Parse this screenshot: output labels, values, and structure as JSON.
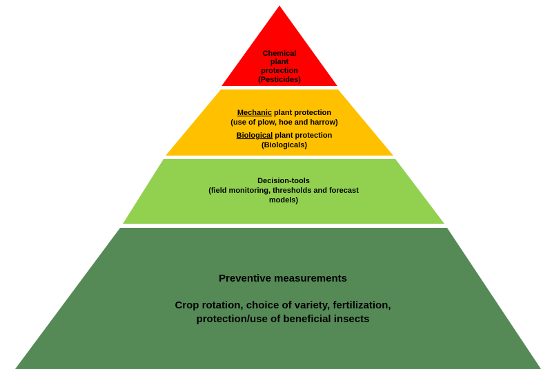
{
  "levels": [
    {
      "lines": [
        "Chemical",
        "plant",
        "protection",
        "(Pesticides)"
      ]
    },
    {
      "lines": [
        {
          "underlined": "Mechanic",
          "text": "plant protection"
        },
        "(use of plow, hoe and harrow)",
        {
          "underlined": "Biological",
          "text": "plant protection"
        },
        "(Biologicals)"
      ]
    },
    {
      "lines": [
        "Decision-tools",
        "(field monitoring, thresholds and forecast",
        "models)"
      ]
    },
    {
      "heading": "Preventive measurements",
      "lines": [
        "Crop rotation, choice of variety, fertilization,",
        "protection/use of beneficial insects"
      ]
    }
  ]
}
